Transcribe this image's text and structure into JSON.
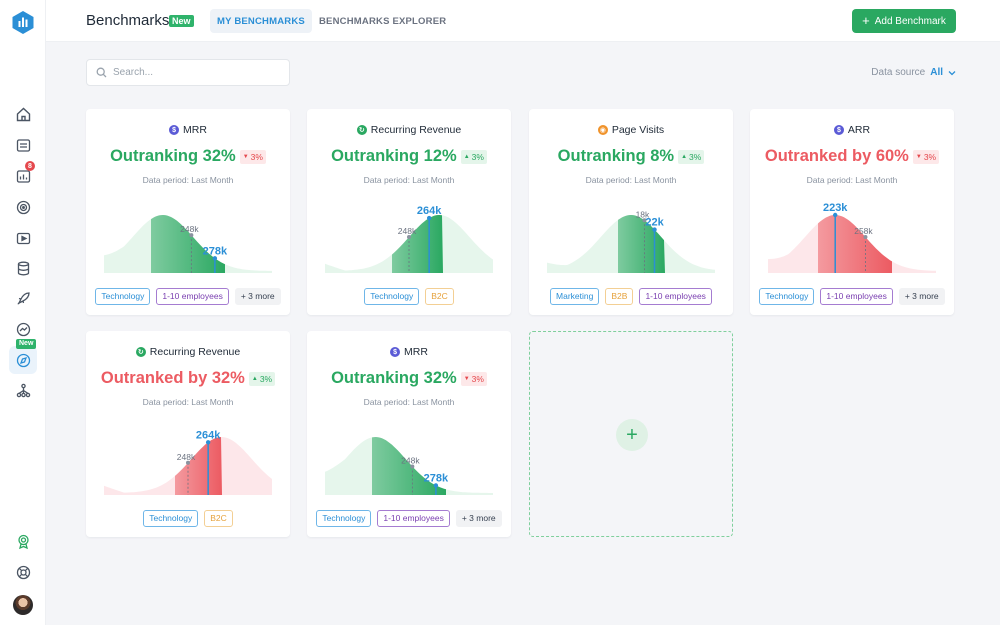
{
  "header": {
    "title": "Benchmarks",
    "new_badge": "New",
    "tabs": [
      {
        "label": "MY BENCHMARKS",
        "active": true
      },
      {
        "label": "BENCHMARKS EXPLORER",
        "active": false
      }
    ],
    "add_button": "Add Benchmark"
  },
  "sidebar": {
    "notification_count": "8",
    "new_label": "New",
    "icons": [
      "home-icon",
      "data-icon",
      "report-icon",
      "goal-icon",
      "video-icon",
      "database-icon",
      "rocket-icon",
      "performance-icon",
      "benchmark-icon",
      "hierarchy-icon",
      "award-icon",
      "help-icon",
      "avatar"
    ]
  },
  "toolbar": {
    "search_placeholder": "Search...",
    "data_source_label": "Data source",
    "data_source_value": "All"
  },
  "colors": {
    "good": "#2aa861",
    "bad": "#ec5b62",
    "accent": "#2b8fd6"
  },
  "cards": [
    {
      "metric": "MRR",
      "metric_icon": "dollar-icon",
      "rank": "Outranking 32%",
      "status": "good",
      "delta": "3%",
      "delta_dir": "down",
      "period": "Data period: Last Month",
      "peer_label": "248k",
      "you_label": "278k",
      "peak": 0.35,
      "peer_pos": 0.52,
      "you_pos": 0.66,
      "fill_range": [
        0.28,
        0.72
      ],
      "tags": [
        {
          "label": "Technology",
          "style": "blue"
        },
        {
          "label": "1-10 employees",
          "style": "purple"
        },
        {
          "label": "+ 3 more",
          "style": "more"
        }
      ]
    },
    {
      "metric": "Recurring Revenue",
      "metric_icon": "revenue-icon",
      "rank": "Outranking 12%",
      "status": "good",
      "delta": "3%",
      "delta_dir": "up",
      "period": "Data period: Last Month",
      "peer_label": "248k",
      "you_label": "264k",
      "peak": 0.68,
      "peer_pos": 0.5,
      "you_pos": 0.62,
      "fill_range": [
        0.4,
        0.7
      ],
      "tags": [
        {
          "label": "Technology",
          "style": "blue"
        },
        {
          "label": "B2C",
          "style": "orange"
        }
      ]
    },
    {
      "metric": "Page Visits",
      "metric_icon": "page-visits-icon",
      "rank": "Outranking 8%",
      "status": "good",
      "delta": "3%",
      "delta_dir": "up",
      "period": "Data period: Last Month",
      "peer_label": "18k",
      "you_label": "22k",
      "peak": 0.5,
      "peer_pos": 0.58,
      "you_pos": 0.64,
      "fill_range": [
        0.42,
        0.7
      ],
      "tags": [
        {
          "label": "Marketing",
          "style": "blue"
        },
        {
          "label": "B2B",
          "style": "orange"
        },
        {
          "label": "1-10 employees",
          "style": "purple"
        }
      ]
    },
    {
      "metric": "ARR",
      "metric_icon": "dollar-icon",
      "rank": "Outranked by 60%",
      "status": "bad",
      "delta": "3%",
      "delta_dir": "down",
      "period": "Data period: Last Month",
      "peer_label": "258k",
      "you_label": "223k",
      "peak": 0.4,
      "peer_pos": 0.58,
      "you_pos": 0.4,
      "fill_range": [
        0.3,
        0.74
      ],
      "tags": [
        {
          "label": "Technology",
          "style": "blue"
        },
        {
          "label": "1-10 employees",
          "style": "purple"
        },
        {
          "label": "+ 3 more",
          "style": "more"
        }
      ]
    },
    {
      "metric": "Recurring Revenue",
      "metric_icon": "revenue-icon",
      "rank": "Outranked by 32%",
      "status": "bad",
      "delta": "3%",
      "delta_dir": "up",
      "period": "Data period: Last Month",
      "peer_label": "248k",
      "you_label": "264k",
      "peak": 0.7,
      "peer_pos": 0.5,
      "you_pos": 0.62,
      "fill_range": [
        0.42,
        0.7
      ],
      "tags": [
        {
          "label": "Technology",
          "style": "blue"
        },
        {
          "label": "B2C",
          "style": "orange"
        }
      ]
    },
    {
      "metric": "MRR",
      "metric_icon": "dollar-icon",
      "rank": "Outranking 32%",
      "status": "good",
      "delta": "3%",
      "delta_dir": "down",
      "period": "Data period: Last Month",
      "peer_label": "248k",
      "you_label": "278k",
      "peak": 0.3,
      "peer_pos": 0.52,
      "you_pos": 0.66,
      "fill_range": [
        0.28,
        0.72
      ],
      "tags": [
        {
          "label": "Technology",
          "style": "blue"
        },
        {
          "label": "1-10 employees",
          "style": "purple"
        },
        {
          "label": "+ 3 more",
          "style": "more"
        }
      ]
    }
  ],
  "add_card": {
    "icon": "plus-icon",
    "label": "+"
  }
}
